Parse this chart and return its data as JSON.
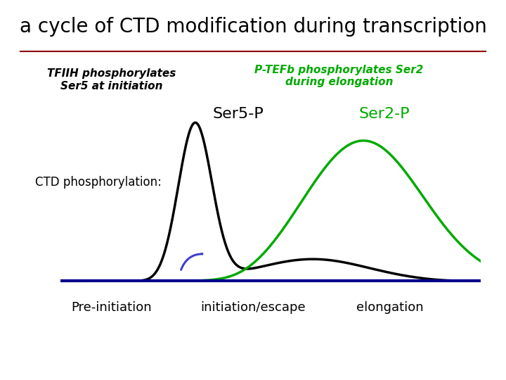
{
  "title": "a cycle of CTD modification during transcription",
  "title_fontsize": 20,
  "title_color": "#000000",
  "background_color": "#ffffff",
  "separator_color": "#8B0000",
  "tfiih_label": "TFIIH phosphorylates\nSer5 at initiation",
  "tfiih_label_color": "#000000",
  "ptefb_label": "P-TEFb phosphorylates Ser2\nduring elongation",
  "ptefb_label_color": "#00aa00",
  "ser5p_label": "Ser5-P",
  "ser5p_label_color": "#000000",
  "ser2p_label": "Ser2-P",
  "ser2p_label_color": "#00aa00",
  "ctd_label": "CTD phosphorylation:",
  "ctd_label_color": "#000000",
  "baseline_color": "#00008B",
  "baseline_lw": 3,
  "ser5p_color": "#000000",
  "ser5p_lw": 2.5,
  "ser2p_color": "#00aa00",
  "ser2p_lw": 2.5,
  "arrow_color": "#4040cc",
  "xlabel_preinit": "Pre-initiation",
  "xlabel_initescape": "initiation/escape",
  "xlabel_elongation": "elongation",
  "xlabel_fontsize": 13
}
